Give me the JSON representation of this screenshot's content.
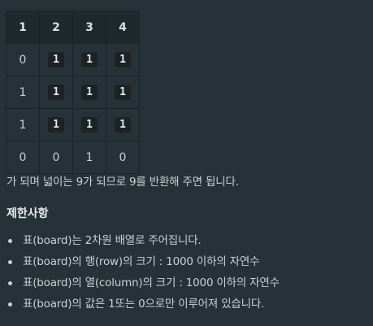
{
  "table": {
    "header": [
      "1",
      "2",
      "3",
      "4"
    ],
    "rows": [
      [
        "0",
        "1",
        "1",
        "1"
      ],
      [
        "1",
        "1",
        "1",
        "1"
      ],
      [
        "1",
        "1",
        "1",
        "1"
      ],
      [
        "0",
        "0",
        "1",
        "0"
      ]
    ]
  },
  "explanation": "가 되며 넓이는 9가 되므로 9를 반환해 주면 됩니다.",
  "constraints_title": "제한사항",
  "constraints": [
    "표(board)는 2차원 배열로 주어집니다.",
    "표(board)의 행(row)의 크기 : 1000 이하의 자연수",
    "표(board)의 열(column)의 크기 : 1000 이하의 자연수",
    "표(board)의 값은 1또는 0으로만 이루어져 있습니다."
  ]
}
